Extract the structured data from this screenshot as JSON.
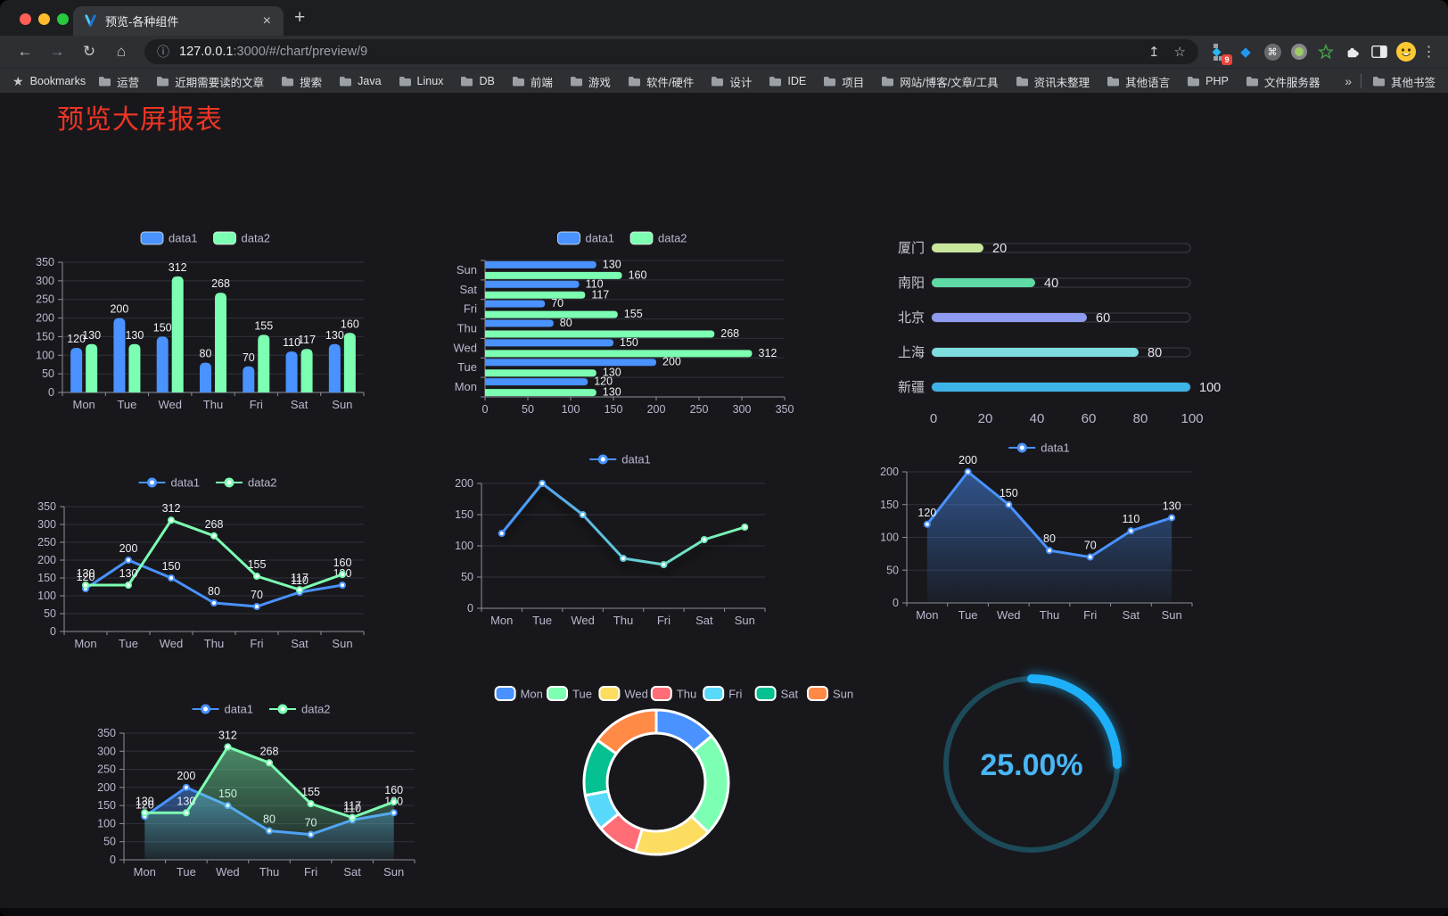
{
  "browser": {
    "tab": {
      "title": "预览-各种组件",
      "close_glyph": "×"
    },
    "new_tab_glyph": "+",
    "nav": {
      "back": "←",
      "forward": "→",
      "reload": "↻",
      "home": "⌂"
    },
    "url": {
      "info_glyph": "ⓘ",
      "host": "127.0.0.1",
      "path": ":3000/#/chart/preview/9",
      "share_glyph": "↥",
      "star_glyph": "☆"
    },
    "extensions_badge": "9",
    "command_glyph": "⌘",
    "menu_dots": "⋮",
    "bookmarks": {
      "label": "Bookmarks",
      "star_glyph": "★",
      "folders": [
        "运营",
        "近期需要读的文章",
        "搜索",
        "Java",
        "Linux",
        "DB",
        "前端",
        "游戏",
        "软件/硬件",
        "设计",
        "IDE",
        "项目",
        "网站/博客/文章/工具",
        "资讯未整理",
        "其他语言",
        "PHP",
        "文件服务器"
      ],
      "overflow_glyph": "»",
      "other_bookmarks": "其他书签"
    }
  },
  "page": {
    "title": "预览大屏报表",
    "title_color": "#ee3524"
  },
  "chart_data": [
    {
      "id": "bar-grouped-vertical",
      "type": "bar",
      "categories": [
        "Mon",
        "Tue",
        "Wed",
        "Thu",
        "Fri",
        "Sat",
        "Sun"
      ],
      "series": [
        {
          "name": "data1",
          "color": "#4992ff",
          "values": [
            120,
            200,
            150,
            80,
            70,
            110,
            130
          ]
        },
        {
          "name": "data2",
          "color": "#7cffb2",
          "values": [
            130,
            130,
            312,
            268,
            155,
            117,
            160
          ]
        }
      ],
      "ylim": [
        0,
        350
      ],
      "ytick_step": 50,
      "legend_position": "top",
      "grid": true,
      "value_labels": true
    },
    {
      "id": "bar-grouped-horizontal",
      "type": "bar-horizontal",
      "categories_top_to_bottom": [
        "Sun",
        "Sat",
        "Fri",
        "Thu",
        "Wed",
        "Tue",
        "Mon"
      ],
      "series": [
        {
          "name": "data1",
          "color": "#4992ff",
          "values": [
            130,
            110,
            70,
            80,
            150,
            200,
            120
          ]
        },
        {
          "name": "data2",
          "color": "#7cffb2",
          "values": [
            160,
            117,
            155,
            268,
            312,
            130,
            130
          ]
        }
      ],
      "xlim": [
        0,
        350
      ],
      "xtick_step": 50,
      "legend_position": "top",
      "value_labels": true
    },
    {
      "id": "progress-bar-list",
      "type": "bar",
      "categories": [
        "厦门",
        "南阳",
        "北京",
        "上海",
        "新疆"
      ],
      "values": [
        20,
        40,
        60,
        80,
        100
      ],
      "colors": [
        "#c9e79b",
        "#5fd9a5",
        "#8f9bf0",
        "#7ededf",
        "#3db3e8"
      ],
      "xlim": [
        0,
        100
      ],
      "xtick_step": 20,
      "value_labels": true
    },
    {
      "id": "line-two-series",
      "type": "line",
      "categories": [
        "Mon",
        "Tue",
        "Wed",
        "Thu",
        "Fri",
        "Sat",
        "Sun"
      ],
      "series": [
        {
          "name": "data1",
          "color": "#4992ff",
          "values": [
            120,
            200,
            150,
            80,
            70,
            110,
            130
          ]
        },
        {
          "name": "data2",
          "color": "#7cffb2",
          "values": [
            130,
            130,
            312,
            268,
            155,
            117,
            160
          ]
        }
      ],
      "ylim": [
        0,
        350
      ],
      "ytick_step": 50,
      "legend_position": "top",
      "value_labels": true
    },
    {
      "id": "line-gradient",
      "type": "line",
      "categories": [
        "Mon",
        "Tue",
        "Wed",
        "Thu",
        "Fri",
        "Sat",
        "Sun"
      ],
      "series": [
        {
          "name": "data1",
          "gradient": [
            "#4992ff",
            "#7cffb2"
          ],
          "values": [
            120,
            200,
            150,
            80,
            70,
            110,
            130
          ]
        }
      ],
      "ylim": [
        0,
        200
      ],
      "ytick_step": 50,
      "legend_position": "top",
      "value_labels": false
    },
    {
      "id": "line-area-single",
      "type": "area",
      "categories": [
        "Mon",
        "Tue",
        "Wed",
        "Thu",
        "Fri",
        "Sat",
        "Sun"
      ],
      "series": [
        {
          "name": "data1",
          "color": "#4992ff",
          "values": [
            120,
            200,
            150,
            80,
            70,
            110,
            130
          ]
        }
      ],
      "ylim": [
        0,
        200
      ],
      "ytick_step": 50,
      "legend_position": "top",
      "value_labels": true
    },
    {
      "id": "line-area-double",
      "type": "area",
      "categories": [
        "Mon",
        "Tue",
        "Wed",
        "Thu",
        "Fri",
        "Sat",
        "Sun"
      ],
      "series": [
        {
          "name": "data1",
          "color": "#4992ff",
          "values": [
            120,
            200,
            150,
            80,
            70,
            110,
            130
          ]
        },
        {
          "name": "data2",
          "color": "#7cffb2",
          "values": [
            130,
            130,
            312,
            268,
            155,
            117,
            160
          ]
        }
      ],
      "ylim": [
        0,
        350
      ],
      "ytick_step": 50,
      "legend_position": "top",
      "value_labels": true
    },
    {
      "id": "donut",
      "type": "pie",
      "categories": [
        "Mon",
        "Tue",
        "Wed",
        "Thu",
        "Fri",
        "Sat",
        "Sun"
      ],
      "values": [
        120,
        200,
        150,
        80,
        70,
        110,
        130
      ],
      "colors": [
        "#4992ff",
        "#7cffb2",
        "#fddd60",
        "#ff6e76",
        "#58d9f9",
        "#05c091",
        "#ff8a45"
      ],
      "legend_position": "top"
    },
    {
      "id": "gauge",
      "type": "gauge",
      "label": "25.00%",
      "percent": 25,
      "color": "#1db0f8",
      "track_color": "#1d4a58",
      "text_color": "#49b6f6"
    }
  ]
}
